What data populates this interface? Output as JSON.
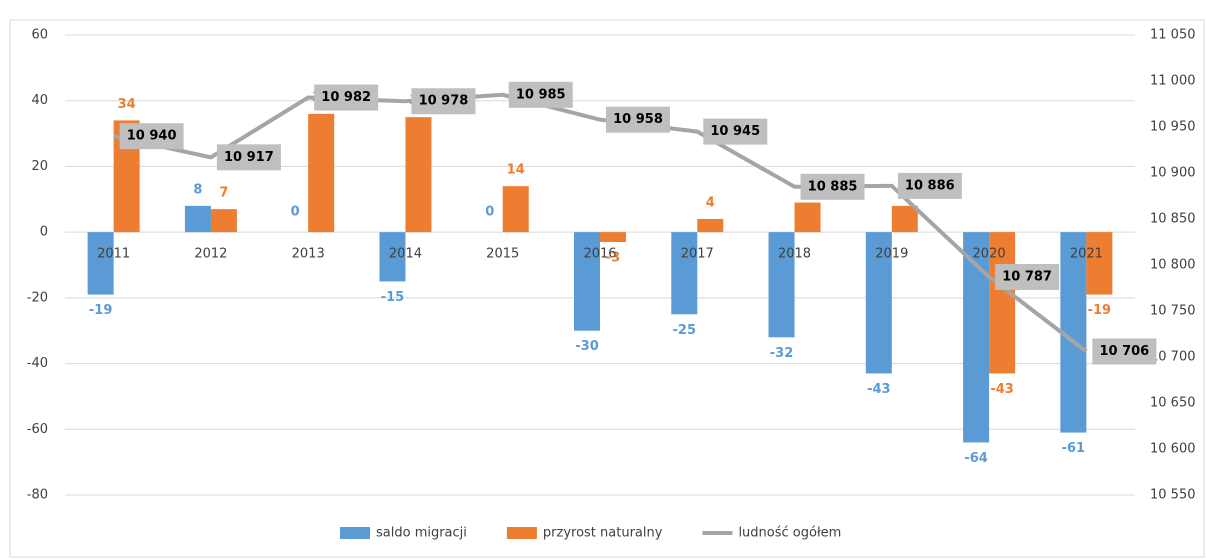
{
  "chart_data": {
    "type": "bar_line",
    "categories": [
      "2011",
      "2012",
      "2013",
      "2014",
      "2015",
      "2016",
      "2017",
      "2018",
      "2019",
      "2020",
      "2021"
    ],
    "series": [
      {
        "name": "saldo migracji",
        "color": "#5b9bd5",
        "values": [
          -19,
          8,
          0,
          -15,
          0,
          -30,
          -25,
          -32,
          -43,
          -64,
          -61
        ]
      },
      {
        "name": "przyrost naturalny",
        "color": "#ed7d31",
        "values": [
          34,
          7,
          36,
          35,
          14,
          -3,
          4,
          9,
          8,
          -43,
          -19
        ]
      },
      {
        "name": "ludność ogółem",
        "color": "#a5a5a5",
        "axis": "y2",
        "values": [
          10940,
          10917,
          10982,
          10978,
          10985,
          10958,
          10945,
          10885,
          10886,
          10787,
          10706
        ],
        "value_labels": [
          "10 940",
          "10 917",
          "10 982",
          "10 978",
          "10 985",
          "10 958",
          "10 945",
          "10 885",
          "10 886",
          "10 787",
          "10 706"
        ]
      }
    ],
    "ylim": [
      -80,
      60
    ],
    "yticks": [
      -80,
      -60,
      -40,
      -20,
      0,
      20,
      40,
      60
    ],
    "y2lim": [
      10550,
      11050
    ],
    "y2ticks": [
      {
        "value": 10550,
        "label": "10 550"
      },
      {
        "value": 10600,
        "label": "10 600"
      },
      {
        "value": 10650,
        "label": "10 650"
      },
      {
        "value": 10700,
        "label": "10 700"
      },
      {
        "value": 10750,
        "label": "10 750"
      },
      {
        "value": 10800,
        "label": "10 800"
      },
      {
        "value": 10850,
        "label": "10 850"
      },
      {
        "value": 10900,
        "label": "10 900"
      },
      {
        "value": 10950,
        "label": "10 950"
      },
      {
        "value": 11000,
        "label": "11 000"
      },
      {
        "value": 11050,
        "label": "11 050"
      }
    ],
    "grid": true,
    "legend": "bottom"
  }
}
